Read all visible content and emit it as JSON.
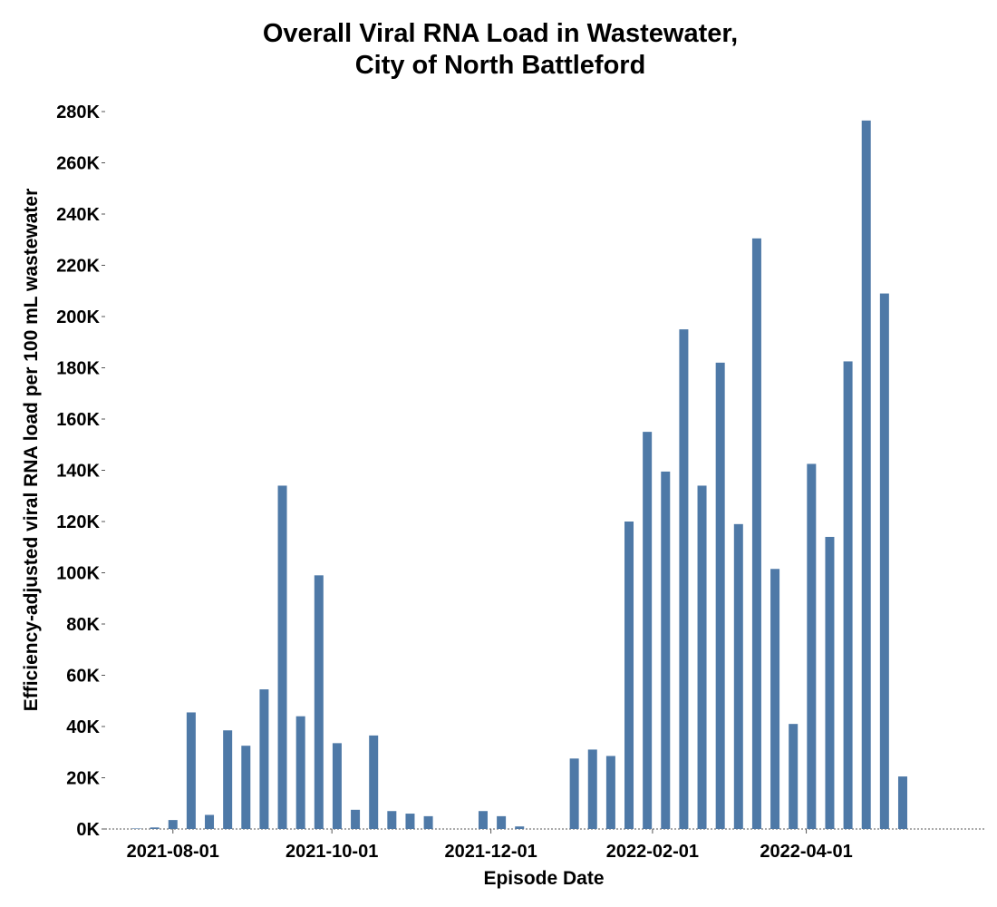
{
  "chart_data": {
    "type": "bar",
    "title_lines": [
      "Overall Viral RNA Load in Wastewater,",
      "City of North Battleford"
    ],
    "xlabel": "Episode Date",
    "ylabel": "Efficiency-adjusted viral RNA load per 100 mL wastewater",
    "ylim": [
      0,
      280000
    ],
    "yticks": [
      0,
      20000,
      40000,
      60000,
      80000,
      100000,
      120000,
      140000,
      160000,
      180000,
      200000,
      220000,
      240000,
      260000,
      280000
    ],
    "ytick_labels": [
      "0K",
      "20K",
      "40K",
      "60K",
      "80K",
      "100K",
      "120K",
      "140K",
      "160K",
      "180K",
      "200K",
      "220K",
      "240K",
      "260K",
      "280K"
    ],
    "xlim": [
      "2021-07-06",
      "2022-06-09"
    ],
    "xticks": [
      "2021-08-01",
      "2021-10-01",
      "2021-12-01",
      "2022-02-01",
      "2022-04-01"
    ],
    "xtick_labels": [
      "2021-08-01",
      "2021-10-01",
      "2021-12-01",
      "2022-02-01",
      "2022-04-01"
    ],
    "bar_color": "#4e79a7",
    "grid": false,
    "legend": "none",
    "x": [
      "2021-07-18",
      "2021-07-25",
      "2021-08-01",
      "2021-08-08",
      "2021-08-15",
      "2021-08-22",
      "2021-08-29",
      "2021-09-05",
      "2021-09-12",
      "2021-09-19",
      "2021-09-26",
      "2021-10-03",
      "2021-10-10",
      "2021-10-17",
      "2021-10-24",
      "2021-10-31",
      "2021-11-07",
      "2021-11-14",
      "2021-11-21",
      "2021-11-28",
      "2021-12-05",
      "2021-12-12",
      "2021-12-19",
      "2021-12-26",
      "2022-01-02",
      "2022-01-09",
      "2022-01-16",
      "2022-01-23",
      "2022-01-30",
      "2022-02-06",
      "2022-02-13",
      "2022-02-20",
      "2022-02-27",
      "2022-03-06",
      "2022-03-13",
      "2022-03-20",
      "2022-03-27",
      "2022-04-03",
      "2022-04-10",
      "2022-04-17",
      "2022-04-24",
      "2022-05-01",
      "2022-05-08",
      "2022-05-15",
      "2022-05-22"
    ],
    "values": [
      200,
      600,
      3500,
      45500,
      5500,
      38500,
      32500,
      54500,
      134000,
      44000,
      99000,
      33500,
      7500,
      36500,
      7000,
      6000,
      5000,
      0,
      0,
      7000,
      5000,
      1000,
      0,
      0,
      27500,
      31000,
      28500,
      120000,
      155000,
      139500,
      195000,
      134000,
      182000,
      119000,
      230500,
      101500,
      41000,
      142500,
      114000,
      182500,
      276500,
      209000,
      20500,
      0,
      0
    ]
  }
}
